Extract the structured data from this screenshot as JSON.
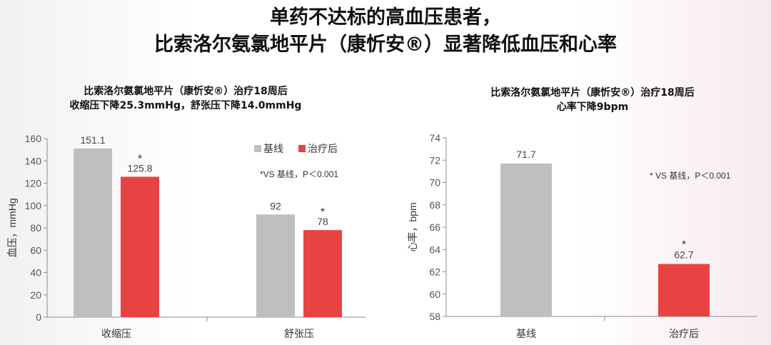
{
  "slide_title": {
    "line1": "单药不达标的高血压患者，",
    "line2": "比索洛尔氨氯地平片（康忻安®）显著降低血压和心率"
  },
  "colors": {
    "baseline": "#bfbfbf",
    "treated": "#e84343",
    "axis": "#8c8c8c"
  },
  "chart_data": [
    {
      "type": "bar",
      "title_line1": "比索洛尔氨氯地平片（康忻安®）治疗18周后",
      "title_line2": "收缩压下降25.3mmHg，舒张压下降14.0mmHg",
      "ylabel": "血压，mmHg",
      "xlabel": "",
      "ylim": [
        0,
        160
      ],
      "yticks": [
        0,
        20,
        40,
        60,
        80,
        100,
        120,
        140,
        160
      ],
      "categories": [
        "收缩压",
        "舒张压"
      ],
      "series": [
        {
          "name": "基线",
          "values": [
            151.1,
            92
          ],
          "labels": [
            "151.1",
            "92"
          ],
          "star": [
            false,
            false
          ]
        },
        {
          "name": "治疗后",
          "values": [
            125.8,
            78
          ],
          "labels": [
            "125.8",
            "78"
          ],
          "star": [
            true,
            true
          ]
        }
      ],
      "star_symbol": "*",
      "legend": "top-right",
      "note": "*VS 基线，P＜0.001",
      "grid": false
    },
    {
      "type": "bar",
      "title_line1": "比索洛尔氨氯地平片（康忻安®）治疗18周后",
      "title_line2": "心率下降9bpm",
      "ylabel": "心率，bpm",
      "xlabel": "",
      "ylim": [
        58,
        74
      ],
      "yticks": [
        58,
        60,
        62,
        64,
        66,
        68,
        70,
        72,
        74
      ],
      "categories": [
        "基线",
        "治疗后"
      ],
      "values": [
        71.7,
        62.7
      ],
      "labels": [
        "71.7",
        "62.7"
      ],
      "star": [
        false,
        true
      ],
      "star_symbol": "*",
      "note": "* VS 基线，P＜0.001",
      "grid": false
    }
  ]
}
